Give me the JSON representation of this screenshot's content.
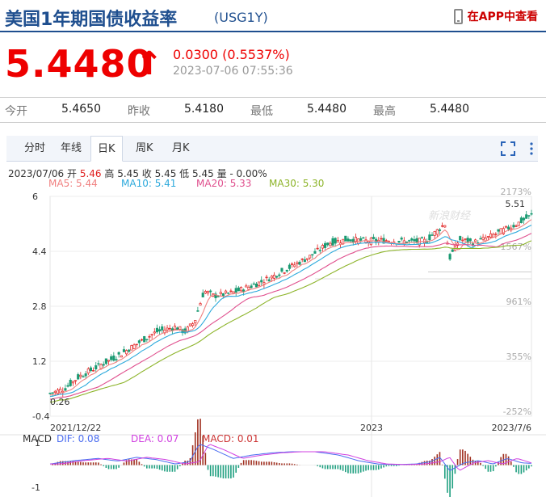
{
  "header": {
    "title": "美国1年期国债收益率",
    "code": "(USG1Y)",
    "app_link": "在APP中查看"
  },
  "quote": {
    "price": "5.4480",
    "arrow": "↑",
    "change": "0.0300 (0.5537%)",
    "time": "2023-07-06 07:55:36"
  },
  "stats": [
    {
      "label": "今开",
      "value": "5.4650"
    },
    {
      "label": "昨收",
      "value": "5.4180"
    },
    {
      "label": "最低",
      "value": "5.4480"
    },
    {
      "label": "最高",
      "value": "5.4480"
    }
  ],
  "tabs": [
    "分时",
    "年线",
    "日K",
    "周K",
    "月K"
  ],
  "active_tab": "日K",
  "info": {
    "date": "2023/07/06",
    "open_label": "开",
    "open": "5.46",
    "high_label": "高",
    "high": "5.45",
    "close_label": "收",
    "close": "5.45",
    "low_label": "低",
    "low": "5.45",
    "vol_label": "量",
    "vol": "- 0.00%"
  },
  "ma_legend": [
    {
      "label": "MA5: 5.44",
      "color": "#f08080"
    },
    {
      "label": "MA10: 5.41",
      "color": "#2eaadc"
    },
    {
      "label": "MA20: 5.33",
      "color": "#e0508e"
    },
    {
      "label": "MA30: 5.30",
      "color": "#8db42a"
    }
  ],
  "watermark": "新浪财经",
  "colors": {
    "up": "#e02020",
    "down": "#1a9a72",
    "dif": "#4a6cf0",
    "dea": "#d040e0",
    "macd_up": "#a03020",
    "macd_down": "#20a080"
  },
  "chart_data": {
    "type": "candlestick",
    "y_ticks": [
      "6",
      "4.4",
      "2.8",
      "1.2",
      "-0.4"
    ],
    "ylim": [
      -0.4,
      6
    ],
    "pct_ticks": [
      "2173%",
      "1567%",
      "961%",
      "355%",
      "-252%"
    ],
    "x_labels": [
      "2021/12/22",
      "2023",
      "2023/7/6"
    ],
    "start_value": 0.26,
    "peak_label": "5.51",
    "min_label": "0.26",
    "close_path": [
      [
        0.0,
        0.26
      ],
      [
        0.03,
        0.4
      ],
      [
        0.06,
        0.75
      ],
      [
        0.1,
        1.05
      ],
      [
        0.14,
        1.35
      ],
      [
        0.18,
        1.7
      ],
      [
        0.22,
        2.05
      ],
      [
        0.26,
        2.2
      ],
      [
        0.28,
        2.05
      ],
      [
        0.3,
        2.35
      ],
      [
        0.32,
        3.25
      ],
      [
        0.34,
        3.1
      ],
      [
        0.38,
        3.2
      ],
      [
        0.42,
        3.4
      ],
      [
        0.46,
        3.65
      ],
      [
        0.5,
        3.95
      ],
      [
        0.54,
        4.25
      ],
      [
        0.58,
        4.65
      ],
      [
        0.62,
        4.75
      ],
      [
        0.66,
        4.7
      ],
      [
        0.7,
        4.72
      ],
      [
        0.74,
        4.68
      ],
      [
        0.78,
        4.7
      ],
      [
        0.8,
        4.95
      ],
      [
        0.82,
        5.2
      ],
      [
        0.83,
        4.2
      ],
      [
        0.85,
        4.75
      ],
      [
        0.88,
        4.65
      ],
      [
        0.91,
        4.8
      ],
      [
        0.94,
        5.0
      ],
      [
        0.97,
        5.2
      ],
      [
        1.0,
        5.45
      ]
    ],
    "macd": {
      "label": "MACD",
      "dif_label": "DIF: 0.08",
      "dea_label": "DEA: 0.07",
      "macd_label": "MACD: 0.01",
      "y_ticks": [
        "1",
        "-1"
      ],
      "path": [
        [
          0.0,
          0.05
        ],
        [
          0.05,
          0.2
        ],
        [
          0.1,
          0.3
        ],
        [
          0.14,
          0.18
        ],
        [
          0.18,
          0.35
        ],
        [
          0.22,
          0.25
        ],
        [
          0.26,
          0.05
        ],
        [
          0.29,
          0.15
        ],
        [
          0.31,
          0.95
        ],
        [
          0.34,
          0.7
        ],
        [
          0.38,
          0.3
        ],
        [
          0.42,
          0.45
        ],
        [
          0.46,
          0.55
        ],
        [
          0.5,
          0.6
        ],
        [
          0.55,
          0.6
        ],
        [
          0.6,
          0.45
        ],
        [
          0.64,
          0.2
        ],
        [
          0.68,
          0.05
        ],
        [
          0.72,
          0.02
        ],
        [
          0.76,
          0.05
        ],
        [
          0.79,
          0.15
        ],
        [
          0.81,
          0.35
        ],
        [
          0.83,
          -0.25
        ],
        [
          0.86,
          0.1
        ],
        [
          0.89,
          0.2
        ],
        [
          0.92,
          0.05
        ],
        [
          0.95,
          0.3
        ],
        [
          0.98,
          0.1
        ],
        [
          1.0,
          0.08
        ]
      ]
    }
  }
}
